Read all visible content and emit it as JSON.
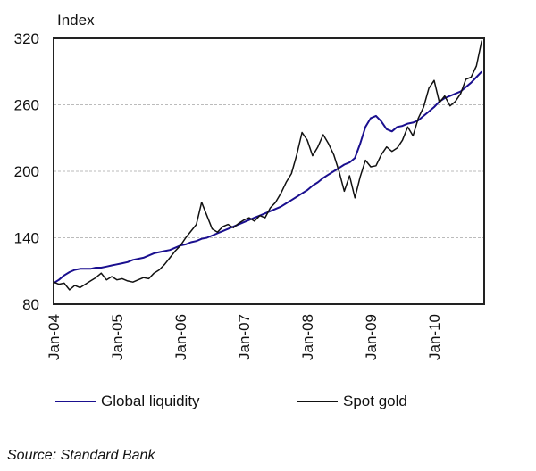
{
  "chart_data": {
    "type": "line",
    "title": "",
    "ylabel": "Index",
    "xlabel": "",
    "ylim": [
      80,
      320
    ],
    "yticks": [
      80,
      140,
      200,
      260,
      320
    ],
    "ytick_labels": [
      "80",
      "140",
      "200",
      "260",
      "320"
    ],
    "xrange": [
      "Jan-04",
      "Oct-10"
    ],
    "xtick_labels": [
      "Jan-04",
      "Jan-05",
      "Jan-06",
      "Jan-07",
      "Jan-08",
      "Jan-09",
      "Jan-10"
    ],
    "grid": "horizontal-dashed",
    "legend_position": "bottom",
    "x_unit": "months since Jan-04",
    "series": [
      {
        "name": "Global liquidity",
        "color": "#1a0f8f",
        "x": [
          0,
          1,
          2,
          3,
          4,
          5,
          6,
          7,
          8,
          9,
          10,
          11,
          12,
          13,
          14,
          15,
          16,
          17,
          18,
          19,
          20,
          21,
          22,
          23,
          24,
          25,
          26,
          27,
          28,
          29,
          30,
          31,
          32,
          33,
          34,
          35,
          36,
          37,
          38,
          39,
          40,
          41,
          42,
          43,
          44,
          45,
          46,
          47,
          48,
          49,
          50,
          51,
          52,
          53,
          54,
          55,
          56,
          57,
          58,
          59,
          60,
          61,
          62,
          63,
          64,
          65,
          66,
          67,
          68,
          69,
          70,
          71,
          72,
          73,
          74,
          75,
          76,
          77,
          78,
          79,
          80,
          81
        ],
        "values": [
          99,
          102,
          106,
          109,
          111,
          112,
          112,
          112,
          113,
          113,
          114,
          115,
          116,
          117,
          118,
          120,
          121,
          122,
          124,
          126,
          127,
          128,
          129,
          131,
          133,
          134,
          136,
          137,
          139,
          140,
          142,
          144,
          146,
          148,
          150,
          152,
          154,
          156,
          158,
          160,
          162,
          164,
          166,
          168,
          171,
          174,
          177,
          180,
          183,
          187,
          190,
          194,
          197,
          200,
          203,
          206,
          208,
          212,
          225,
          240,
          248,
          250,
          245,
          238,
          236,
          240,
          241,
          243,
          244,
          246,
          250,
          254,
          258,
          263,
          266,
          268,
          270,
          272,
          276,
          280,
          285,
          290
        ]
      },
      {
        "name": "Spot gold",
        "color": "#111111",
        "x": [
          0,
          1,
          2,
          3,
          4,
          5,
          6,
          7,
          8,
          9,
          10,
          11,
          12,
          13,
          14,
          15,
          16,
          17,
          18,
          19,
          20,
          21,
          22,
          23,
          24,
          25,
          26,
          27,
          28,
          29,
          30,
          31,
          32,
          33,
          34,
          35,
          36,
          37,
          38,
          39,
          40,
          41,
          42,
          43,
          44,
          45,
          46,
          47,
          48,
          49,
          50,
          51,
          52,
          53,
          54,
          55,
          56,
          57,
          58,
          59,
          60,
          61,
          62,
          63,
          64,
          65,
          66,
          67,
          68,
          69,
          70,
          71,
          72,
          73,
          74,
          75,
          76,
          77,
          78,
          79,
          80,
          81
        ],
        "values": [
          100,
          98,
          99,
          93,
          97,
          95,
          98,
          101,
          104,
          108,
          102,
          105,
          102,
          103,
          101,
          100,
          102,
          104,
          103,
          108,
          111,
          116,
          122,
          128,
          133,
          140,
          146,
          152,
          172,
          160,
          148,
          145,
          150,
          152,
          149,
          153,
          156,
          158,
          155,
          160,
          158,
          167,
          172,
          180,
          190,
          198,
          215,
          235,
          228,
          214,
          222,
          233,
          225,
          215,
          200,
          182,
          196,
          176,
          195,
          210,
          204,
          205,
          215,
          222,
          218,
          221,
          228,
          240,
          232,
          248,
          258,
          275,
          282,
          262,
          268,
          259,
          263,
          270,
          283,
          285,
          295,
          318
        ]
      }
    ]
  },
  "legend": {
    "items": [
      {
        "label": "Global liquidity",
        "color": "#1a0f8f"
      },
      {
        "label": "Spot gold",
        "color": "#111111"
      }
    ]
  },
  "source": "Source: Standard Bank"
}
